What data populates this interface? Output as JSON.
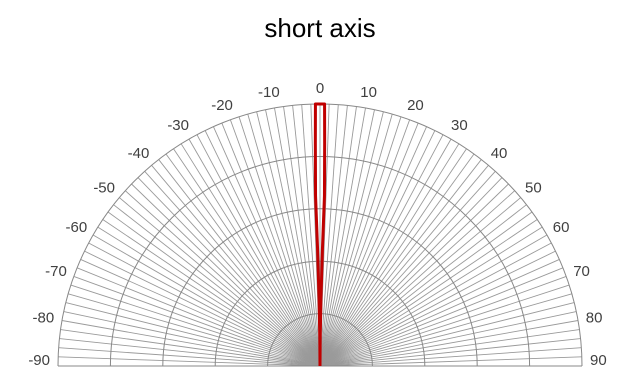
{
  "chart_data": {
    "type": "polar-line",
    "title": "short axis",
    "angular_axis": {
      "min": -90,
      "max": 90,
      "major_step": 10,
      "minor_step": 2,
      "tick_labels": [
        "-90",
        "-80",
        "-70",
        "-60",
        "-50",
        "-40",
        "-30",
        "-20",
        "-10",
        "0",
        "10",
        "20",
        "30",
        "40",
        "50",
        "60",
        "70",
        "80",
        "90"
      ]
    },
    "radial_axis": {
      "min": 0,
      "max": 1,
      "gridlines": [
        0.2,
        0.4,
        0.6,
        0.8,
        1.0
      ]
    },
    "grid": true,
    "legend": "none",
    "colors": {
      "series": "#c00000",
      "spokes": "#9a9a9a",
      "rings": "#888888",
      "tick_text": "#404040"
    },
    "series": [
      {
        "points": [
          {
            "angle": 0,
            "r": 0
          },
          {
            "angle": -0.4,
            "r": 0.1
          },
          {
            "angle": -0.8,
            "r": 0.25
          },
          {
            "angle": -1.2,
            "r": 0.45
          },
          {
            "angle": -1.5,
            "r": 0.65
          },
          {
            "angle": -1.2,
            "r": 0.85
          },
          {
            "angle": -1.0,
            "r": 1.0
          },
          {
            "angle": 1.0,
            "r": 1.0
          },
          {
            "angle": 1.2,
            "r": 0.85
          },
          {
            "angle": 1.5,
            "r": 0.65
          },
          {
            "angle": 1.2,
            "r": 0.45
          },
          {
            "angle": 0.8,
            "r": 0.25
          },
          {
            "angle": 0.4,
            "r": 0.1
          },
          {
            "angle": 0,
            "r": 0
          }
        ]
      }
    ]
  }
}
